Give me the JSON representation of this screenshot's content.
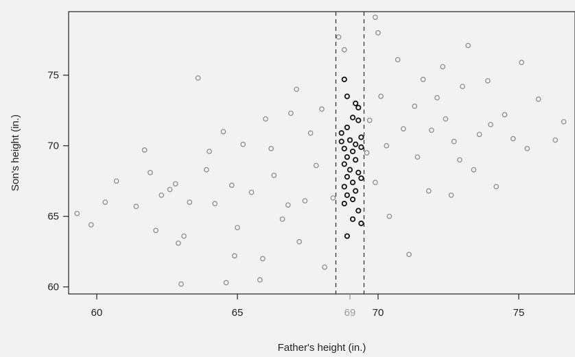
{
  "chart_data": {
    "type": "scatter",
    "title": "",
    "xlabel": "Father's height (in.)",
    "ylabel": "Son's height (in.)",
    "xlim": [
      59,
      77
    ],
    "ylim": [
      59.5,
      79.5
    ],
    "xticks": [
      60,
      65,
      70,
      75
    ],
    "yticks": [
      60,
      65,
      70,
      75
    ],
    "highlight_tick": {
      "value": 69,
      "label": "69",
      "color": "#999999"
    },
    "reference_lines": [
      68.5,
      69.5
    ],
    "colors": {
      "points": "#8c8c8c",
      "highlight": "#111111",
      "axis": "#222222",
      "background": "#f2f2f2"
    },
    "highlight_window": [
      68.5,
      69.5
    ],
    "points": [
      [
        59.3,
        65.2
      ],
      [
        59.8,
        64.4
      ],
      [
        60.3,
        66.0
      ],
      [
        60.7,
        67.5
      ],
      [
        61.4,
        65.7
      ],
      [
        61.7,
        69.7
      ],
      [
        62.1,
        64.0
      ],
      [
        62.3,
        66.5
      ],
      [
        62.6,
        66.9
      ],
      [
        62.9,
        63.1
      ],
      [
        63.1,
        63.6
      ],
      [
        63.6,
        74.8
      ],
      [
        64.2,
        65.9
      ],
      [
        64.6,
        60.3
      ],
      [
        64.9,
        62.2
      ],
      [
        65.2,
        70.1
      ],
      [
        65.8,
        60.5
      ],
      [
        66.3,
        67.9
      ],
      [
        66.6,
        64.8
      ],
      [
        66.9,
        72.3
      ],
      [
        67.2,
        63.2
      ],
      [
        67.4,
        66.1
      ],
      [
        67.8,
        68.6
      ],
      [
        68.1,
        61.4
      ],
      [
        68.4,
        66.3
      ],
      [
        68.6,
        77.7
      ],
      [
        68.8,
        76.8
      ],
      [
        69.6,
        69.5
      ],
      [
        70.1,
        73.5
      ],
      [
        70.4,
        65.0
      ],
      [
        70.7,
        76.1
      ],
      [
        71.1,
        62.3
      ],
      [
        71.4,
        69.2
      ],
      [
        71.6,
        74.7
      ],
      [
        71.9,
        71.1
      ],
      [
        72.3,
        75.6
      ],
      [
        72.6,
        66.5
      ],
      [
        72.9,
        69.0
      ],
      [
        73.2,
        77.1
      ],
      [
        73.4,
        68.3
      ],
      [
        73.6,
        70.8
      ],
      [
        73.9,
        74.6
      ],
      [
        74.2,
        67.1
      ],
      [
        74.5,
        72.2
      ],
      [
        74.8,
        70.5
      ],
      [
        75.1,
        75.9
      ],
      [
        75.3,
        69.8
      ],
      [
        75.7,
        73.3
      ],
      [
        76.3,
        70.4
      ],
      [
        76.6,
        71.7
      ],
      [
        63.9,
        68.3
      ],
      [
        64.5,
        71.0
      ],
      [
        65.5,
        66.7
      ],
      [
        66.2,
        69.8
      ],
      [
        67.6,
        70.9
      ],
      [
        70.9,
        71.2
      ],
      [
        71.8,
        66.8
      ],
      [
        72.7,
        70.3
      ],
      [
        62.8,
        67.3
      ],
      [
        61.9,
        68.1
      ],
      [
        67.1,
        74.0
      ],
      [
        69.9,
        67.4
      ],
      [
        74.0,
        71.5
      ],
      [
        64.0,
        69.6
      ],
      [
        65.0,
        64.2
      ],
      [
        66.8,
        65.8
      ],
      [
        70.3,
        70.0
      ],
      [
        71.3,
        72.8
      ],
      [
        69.7,
        71.8
      ],
      [
        72.1,
        73.4
      ],
      [
        63.3,
        66.0
      ],
      [
        68.0,
        72.6
      ],
      [
        73.0,
        74.2
      ],
      [
        66.0,
        71.9
      ],
      [
        63.0,
        60.2
      ],
      [
        65.9,
        62.0
      ],
      [
        70.0,
        78.0
      ],
      [
        69.9,
        79.1
      ],
      [
        72.4,
        71.9
      ],
      [
        64.8,
        67.2
      ]
    ],
    "highlight_points": [
      [
        68.8,
        74.7
      ],
      [
        68.9,
        73.5
      ],
      [
        69.2,
        73.0
      ],
      [
        69.1,
        72.0
      ],
      [
        68.9,
        71.3
      ],
      [
        69.3,
        71.8
      ],
      [
        68.7,
        70.9
      ],
      [
        69.0,
        70.4
      ],
      [
        69.2,
        70.1
      ],
      [
        68.8,
        69.8
      ],
      [
        69.1,
        69.6
      ],
      [
        69.4,
        69.9
      ],
      [
        68.9,
        69.2
      ],
      [
        69.2,
        69.0
      ],
      [
        68.8,
        68.7
      ],
      [
        69.0,
        68.3
      ],
      [
        69.3,
        68.1
      ],
      [
        68.9,
        67.8
      ],
      [
        69.1,
        67.4
      ],
      [
        69.4,
        67.7
      ],
      [
        68.8,
        67.1
      ],
      [
        69.2,
        66.8
      ],
      [
        68.9,
        66.5
      ],
      [
        69.1,
        66.2
      ],
      [
        68.8,
        65.9
      ],
      [
        69.3,
        65.4
      ],
      [
        69.1,
        64.8
      ],
      [
        69.4,
        64.5
      ],
      [
        68.9,
        63.6
      ],
      [
        69.3,
        72.7
      ],
      [
        69.4,
        70.6
      ],
      [
        68.7,
        70.3
      ]
    ]
  }
}
